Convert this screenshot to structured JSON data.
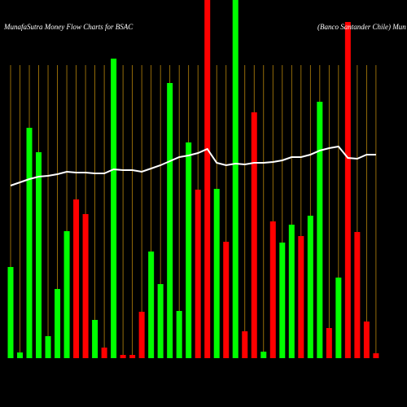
{
  "chart_data": {
    "type": "bar",
    "title": "MunafaSutra  Money Flow  Charts for BSAC",
    "subtitle": "(Banco  Santander Chile) Mun",
    "categories": [
      null,
      null,
      null,
      null,
      null,
      null,
      null,
      null,
      null,
      null,
      null,
      null,
      null,
      null,
      null,
      null,
      null,
      null,
      null,
      null,
      null,
      null,
      null,
      null,
      null,
      null,
      null,
      null,
      null,
      null,
      null,
      null,
      null,
      null,
      null,
      null,
      null,
      null,
      null,
      null
    ],
    "values": [
      112,
      7,
      283,
      253,
      27,
      85,
      156,
      195,
      177,
      47,
      13,
      368,
      4,
      4,
      57,
      131,
      91,
      338,
      58,
      265,
      207,
      440,
      208,
      143,
      440,
      33,
      302,
      8,
      168,
      142,
      164,
      150,
      175,
      315,
      37,
      99,
      413,
      155,
      45,
      6
    ],
    "colors": [
      "#00ff00",
      "#00ff00",
      "#00ff00",
      "#00ff00",
      "#00ff00",
      "#00ff00",
      "#00ff00",
      "#ff0000",
      "#ff0000",
      "#00ff00",
      "#ff0000",
      "#00ff00",
      "#ff0000",
      "#ff0000",
      "#ff0000",
      "#00ff00",
      "#00ff00",
      "#00ff00",
      "#00ff00",
      "#00ff00",
      "#ff0000",
      "#ff0000",
      "#00ff00",
      "#ff0000",
      "#00ff00",
      "#ff0000",
      "#ff0000",
      "#00ff00",
      "#ff0000",
      "#00ff00",
      "#00ff00",
      "#ff0000",
      "#00ff00",
      "#00ff00",
      "#ff0000",
      "#00ff00",
      "#ff0000",
      "#ff0000",
      "#ff0000",
      "#ff0000"
    ],
    "line": {
      "color": "#ffffff",
      "values": [
        212,
        216,
        220,
        223,
        224,
        226,
        229,
        228,
        228,
        227,
        227,
        232,
        231,
        231,
        229,
        233,
        237,
        242,
        247,
        249,
        252,
        257,
        240,
        237,
        239,
        238,
        240,
        240,
        241,
        243,
        247,
        247,
        250,
        255,
        258,
        260,
        246,
        245,
        250,
        250
      ]
    },
    "ylim": [
      0,
      440
    ],
    "grid_color": "#b8860b"
  }
}
